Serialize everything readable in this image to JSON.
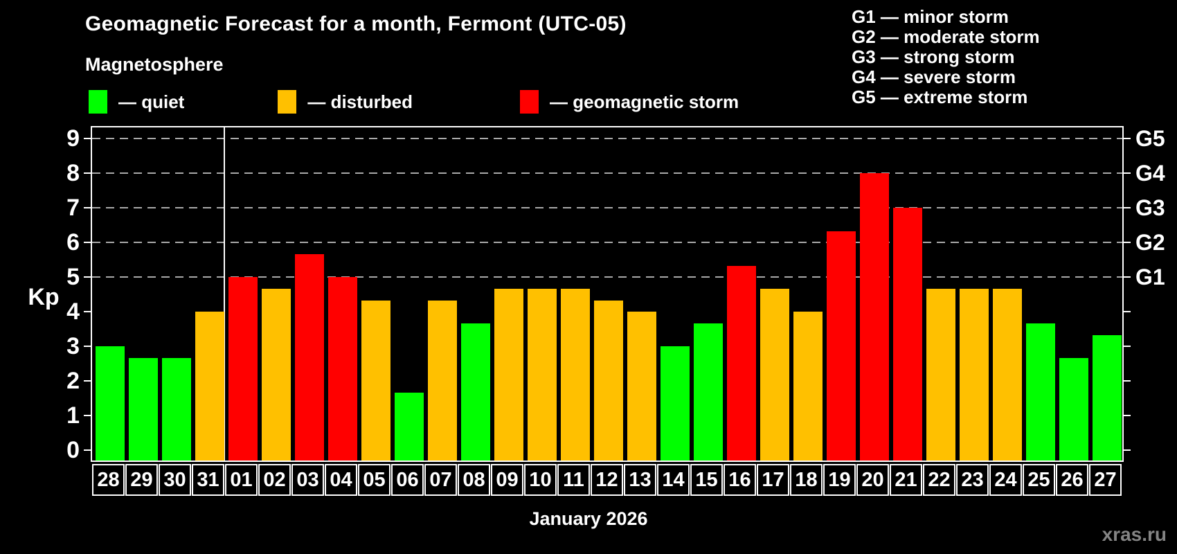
{
  "title": "Geomagnetic Forecast for a month, Fermont (UTC-05)",
  "subtitle": "Magnetosphere",
  "legend": {
    "items": [
      {
        "key": "quiet",
        "label": "— quiet",
        "color": "#00ff00"
      },
      {
        "key": "disturbed",
        "label": "— disturbed",
        "color": "#ffc000"
      },
      {
        "key": "storm",
        "label": "— geomagnetic storm",
        "color": "#ff0000"
      }
    ]
  },
  "g_scale_legend": {
    "lines": [
      "G1 — minor storm",
      "G2 — moderate storm",
      "G3 — strong storm",
      "G4 — severe storm",
      "G5 — extreme storm"
    ]
  },
  "y_axis": {
    "label": "Kp",
    "ticks": [
      0,
      1,
      2,
      3,
      4,
      5,
      6,
      7,
      8,
      9
    ]
  },
  "right_axis": {
    "labels": [
      {
        "text": "G1",
        "kp": 5
      },
      {
        "text": "G2",
        "kp": 6
      },
      {
        "text": "G3",
        "kp": 7
      },
      {
        "text": "G4",
        "kp": 8
      },
      {
        "text": "G5",
        "kp": 9
      }
    ]
  },
  "x_axis": {
    "month_label": "January 2026"
  },
  "watermark": "xras.ru",
  "chart_data": {
    "type": "bar",
    "title": "Geomagnetic Forecast for a month, Fermont (UTC-05)",
    "xlabel": "January 2026",
    "ylabel": "Kp",
    "ylim": [
      0,
      9
    ],
    "gridlines_at": [
      5,
      6,
      7,
      8,
      9
    ],
    "legend_position": "top",
    "categories": [
      "28",
      "29",
      "30",
      "31",
      "01",
      "02",
      "03",
      "04",
      "05",
      "06",
      "07",
      "08",
      "09",
      "10",
      "11",
      "12",
      "13",
      "14",
      "15",
      "16",
      "17",
      "18",
      "19",
      "20",
      "21",
      "22",
      "23",
      "24",
      "25",
      "26",
      "27"
    ],
    "values": [
      3.0,
      2.67,
      2.67,
      4.0,
      5.0,
      4.67,
      5.67,
      5.0,
      4.33,
      1.67,
      4.33,
      3.67,
      4.67,
      4.67,
      4.67,
      4.33,
      4.0,
      3.0,
      3.67,
      5.33,
      4.67,
      4.0,
      6.33,
      8.0,
      7.0,
      4.67,
      4.67,
      4.67,
      3.67,
      2.67,
      3.33
    ],
    "statuses": [
      "quiet",
      "quiet",
      "quiet",
      "disturbed",
      "storm",
      "disturbed",
      "storm",
      "storm",
      "disturbed",
      "quiet",
      "disturbed",
      "quiet",
      "disturbed",
      "disturbed",
      "disturbed",
      "disturbed",
      "disturbed",
      "quiet",
      "quiet",
      "storm",
      "disturbed",
      "disturbed",
      "storm",
      "storm",
      "storm",
      "disturbed",
      "disturbed",
      "disturbed",
      "quiet",
      "quiet",
      "quiet"
    ],
    "colors": {
      "quiet": "#00ff00",
      "disturbed": "#ffc000",
      "storm": "#ff0000"
    },
    "month_separator_before_index": 4
  }
}
